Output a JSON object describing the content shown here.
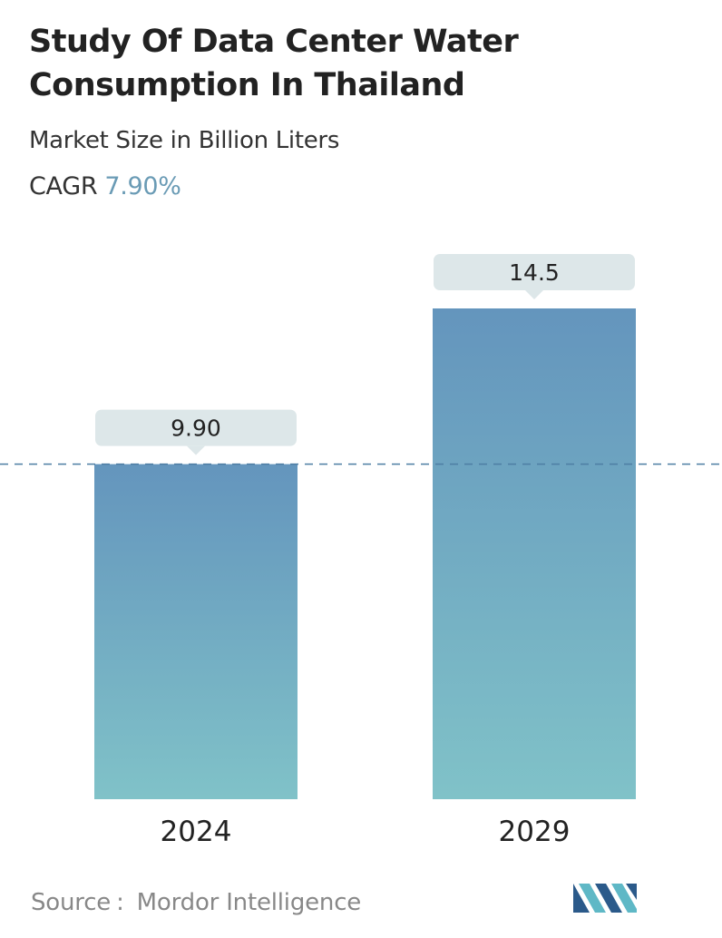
{
  "header": {
    "title": "Study Of Data Center Water Consumption In Thailand",
    "subtitle": "Market Size in Billion Liters",
    "cagr_label": "CAGR",
    "cagr_value": "7.90%"
  },
  "footer": {
    "source_label": "Source",
    "source_separator": ":",
    "source_name": "Mordor Intelligence",
    "logo_icon": "mordor-intelligence-logo-icon"
  },
  "colors": {
    "bar_top": "#6495bd",
    "bar_bottom": "#80c2c8",
    "label_box": "#dde7e9",
    "dashed_line": "#4d7ea3",
    "cagr_accent": "#6a9bb5",
    "logo_dark": "#2b5a8a",
    "logo_light": "#5fb8c6"
  },
  "chart_data": {
    "type": "bar",
    "title": "Study Of Data Center Water Consumption In Thailand",
    "subtitle": "Market Size in Billion Liters",
    "categories": [
      "2024",
      "2029"
    ],
    "values": [
      9.9,
      14.5
    ],
    "value_labels": [
      "9.90",
      "14.5"
    ],
    "xlabel": "",
    "ylabel": "",
    "ylim": [
      0,
      14.5
    ],
    "grid": false,
    "legend": "none",
    "reference_line": {
      "value": 9.9,
      "style": "dashed"
    }
  }
}
